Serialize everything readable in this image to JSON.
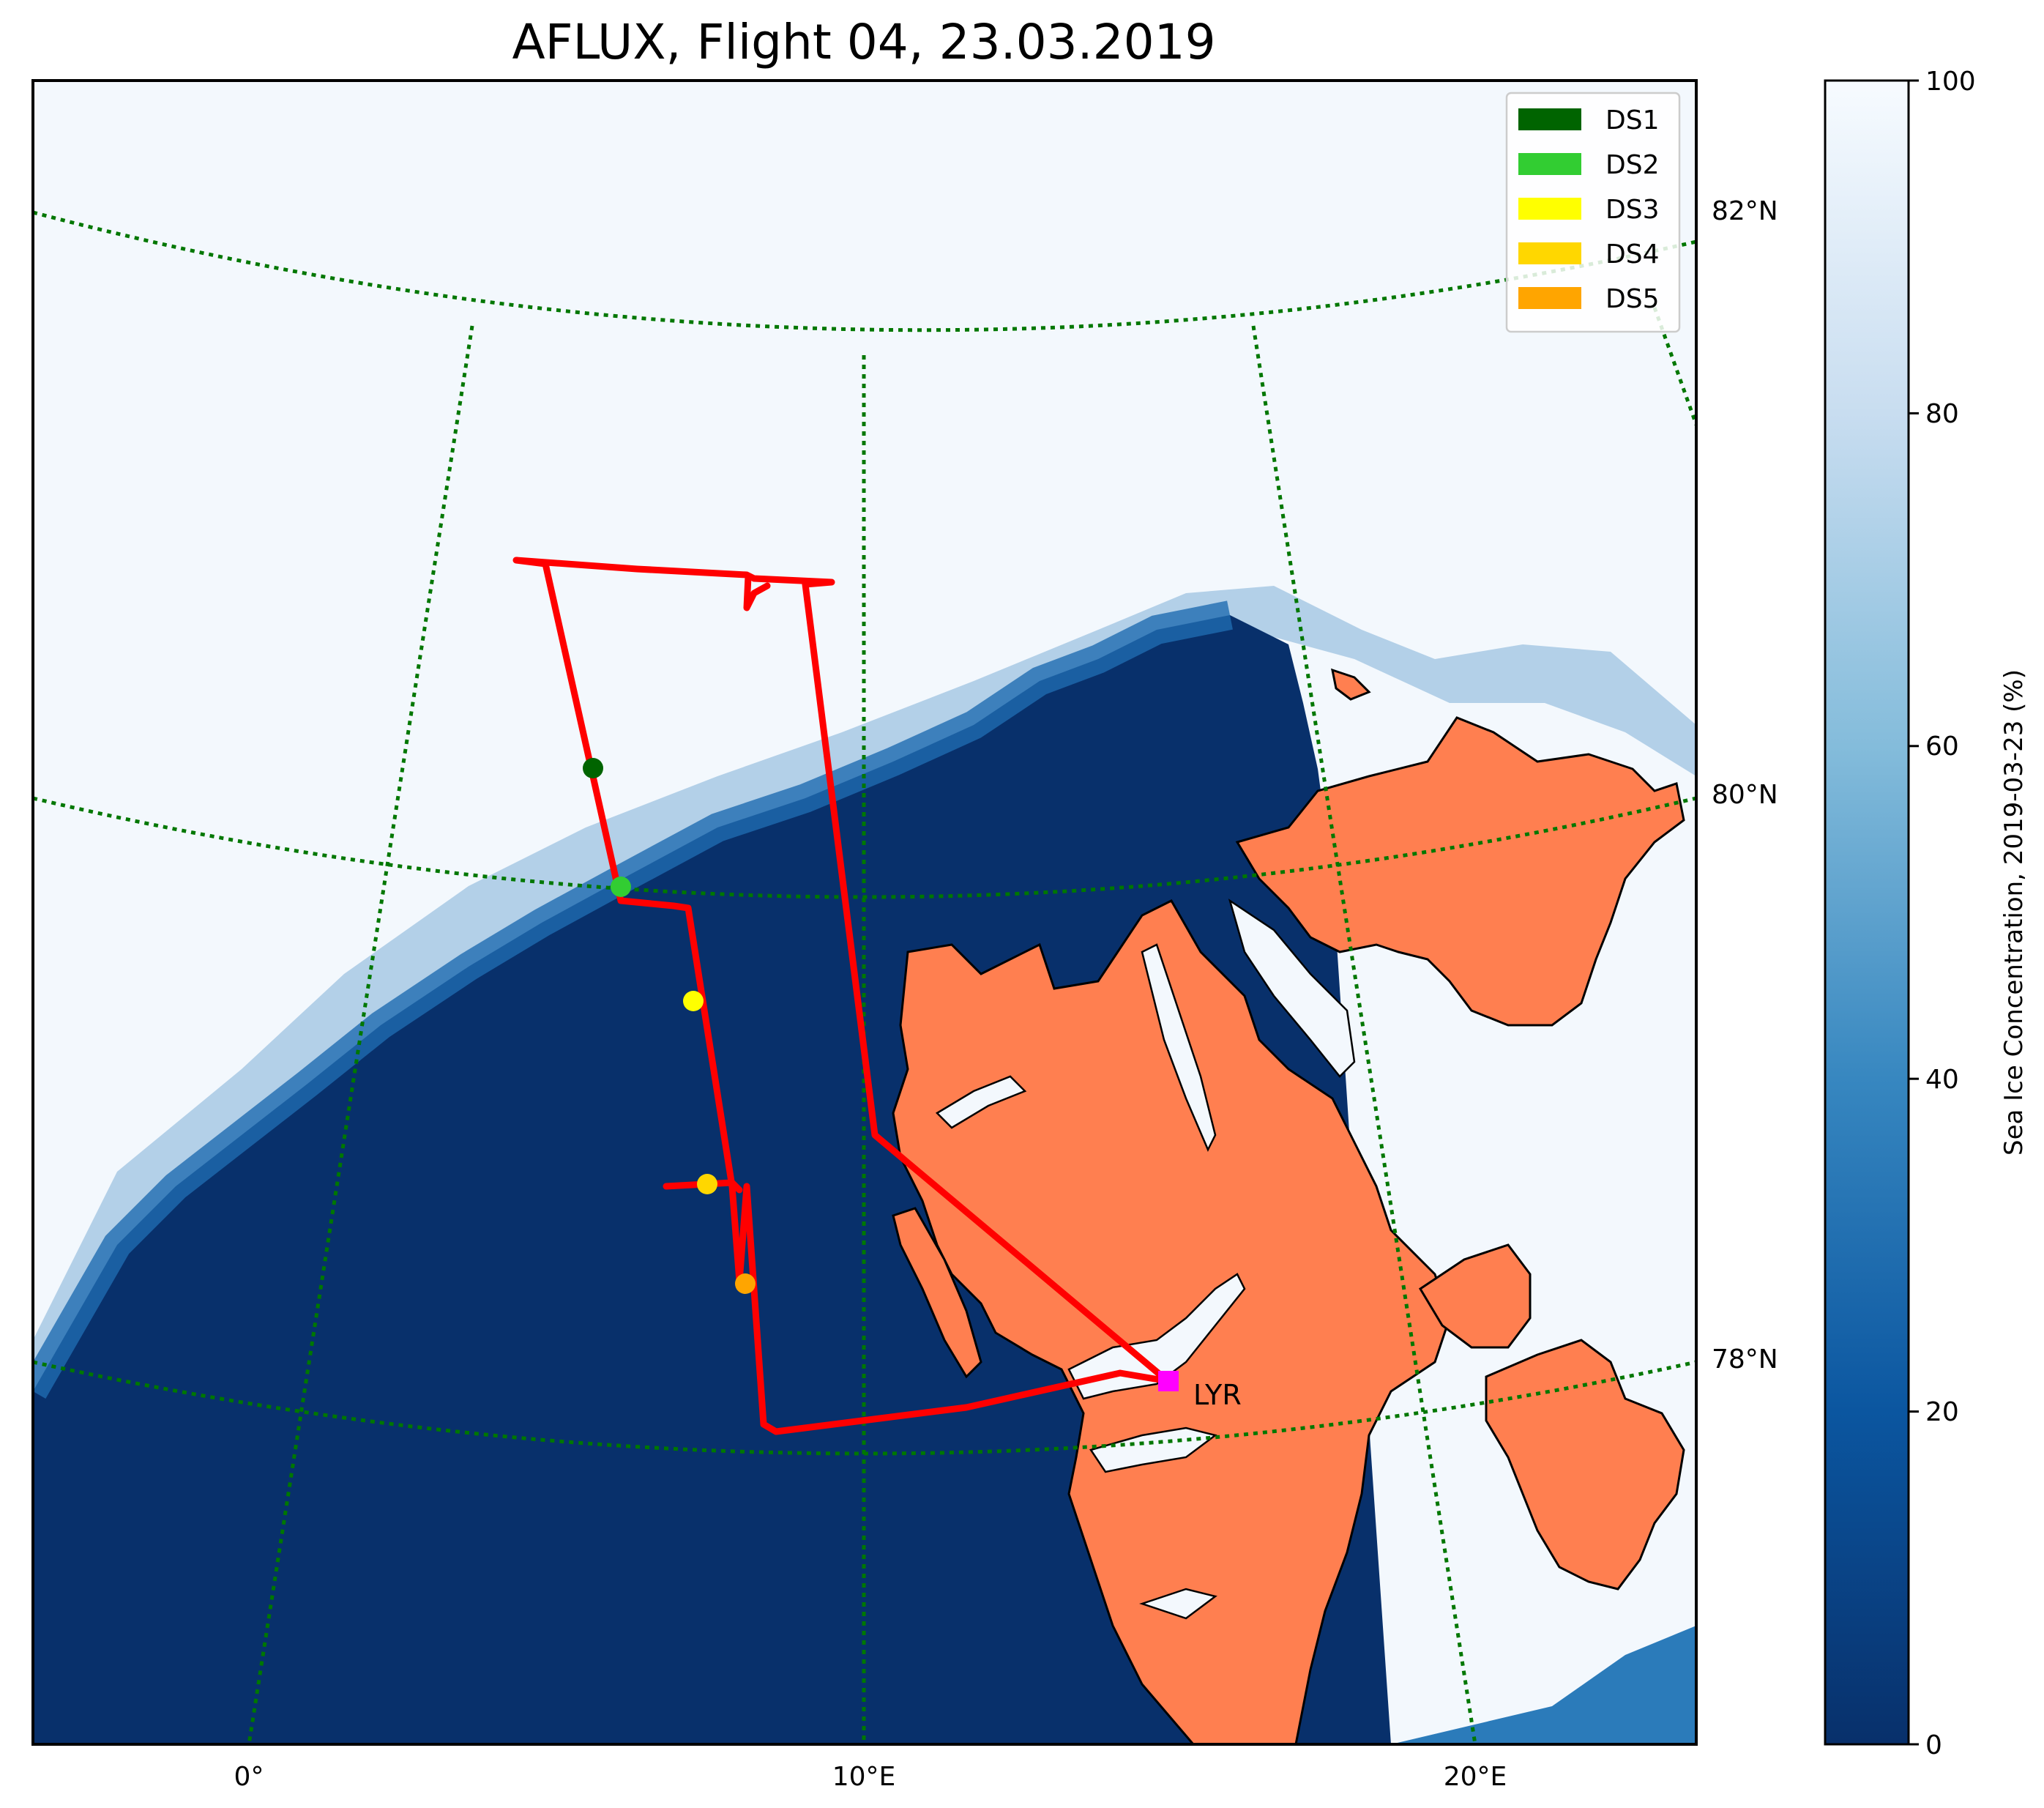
{
  "title": "AFLUX, Flight 04, 23.03.2019",
  "map": {
    "lat_labels": [
      "82°N",
      "80°N",
      "78°N"
    ],
    "lon_labels": [
      "0°",
      "10°E",
      "20°E"
    ],
    "airport_label": "LYR",
    "graticule_color": "#007700",
    "land_color": "#FF7F50",
    "track_color": "#FF0000",
    "airport_marker_color": "#FF00FF"
  },
  "legend": {
    "items": [
      {
        "label": "DS1",
        "color": "#006400"
      },
      {
        "label": "DS2",
        "color": "#32CD32"
      },
      {
        "label": "DS3",
        "color": "#FFFF00"
      },
      {
        "label": "DS4",
        "color": "#FFD700"
      },
      {
        "label": "DS5",
        "color": "#FFA500"
      }
    ]
  },
  "colorbar": {
    "label": "Sea Ice Concentration, 2019-03-23 (%)",
    "ticks": [
      "0",
      "20",
      "40",
      "60",
      "80",
      "100"
    ],
    "range": [
      0,
      100
    ],
    "colormap": "Blues_r"
  }
}
